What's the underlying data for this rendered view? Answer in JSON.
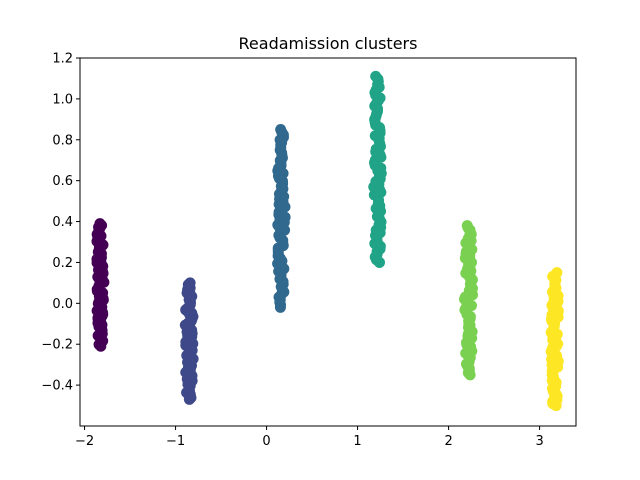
{
  "chart_data": {
    "type": "scatter",
    "title": "Readamission clusters",
    "xlabel": "",
    "ylabel": "",
    "xlim": [
      -2.05,
      3.4
    ],
    "ylim": [
      -0.6,
      1.2
    ],
    "xticks": [
      "−2",
      "−1",
      "0",
      "1",
      "2",
      "3"
    ],
    "xtick_values": [
      -2,
      -1,
      0,
      1,
      2,
      3
    ],
    "yticks": [
      "−0.4",
      "−0.2",
      "0.0",
      "0.2",
      "0.4",
      "0.6",
      "0.8",
      "1.0",
      "1.2"
    ],
    "ytick_values": [
      -0.4,
      -0.2,
      0.0,
      0.2,
      0.4,
      0.6,
      0.8,
      1.0,
      1.2
    ],
    "grid": false,
    "clusters": [
      {
        "x_center": -1.83,
        "x_spread": 0.045,
        "y_min": -0.21,
        "y_max": 0.39,
        "color": "#440154"
      },
      {
        "x_center": -0.85,
        "x_spread": 0.045,
        "y_min": -0.47,
        "y_max": 0.1,
        "color": "#3e4989"
      },
      {
        "x_center": 0.16,
        "x_spread": 0.045,
        "y_min": -0.02,
        "y_max": 0.85,
        "color": "#31688e"
      },
      {
        "x_center": 1.22,
        "x_spread": 0.045,
        "y_min": 0.2,
        "y_max": 1.11,
        "color": "#20a386"
      },
      {
        "x_center": 2.22,
        "x_spread": 0.045,
        "y_min": -0.35,
        "y_max": 0.38,
        "color": "#7ad151"
      },
      {
        "x_center": 3.17,
        "x_spread": 0.045,
        "y_min": -0.5,
        "y_max": 0.15,
        "color": "#fde725"
      }
    ]
  }
}
